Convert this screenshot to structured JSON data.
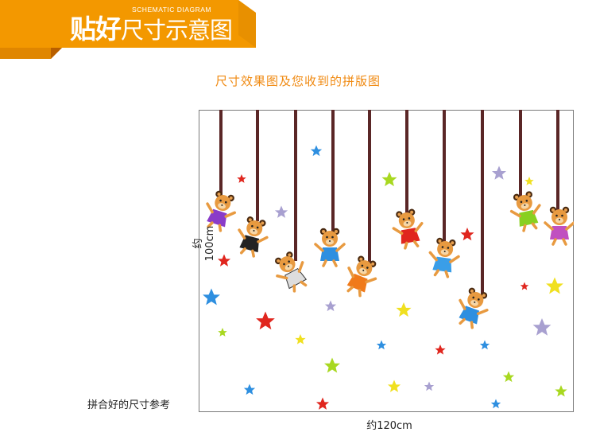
{
  "banner": {
    "title_bold": "贴好",
    "title_thin": "尺寸示意图",
    "subtitle": "SCHEMATIC DIAGRAM"
  },
  "heading": "尺寸效果图及您收到的拼版图",
  "dimensions": {
    "width_label": "约120cm",
    "height_label": "约100cm",
    "reference_label": "拼合好的尺寸参考"
  },
  "colors": {
    "banner_orange": "#f39800",
    "banner_dark": "#c96a00",
    "heading_orange": "#f08a12",
    "rope_brown": "#5a2626"
  }
}
